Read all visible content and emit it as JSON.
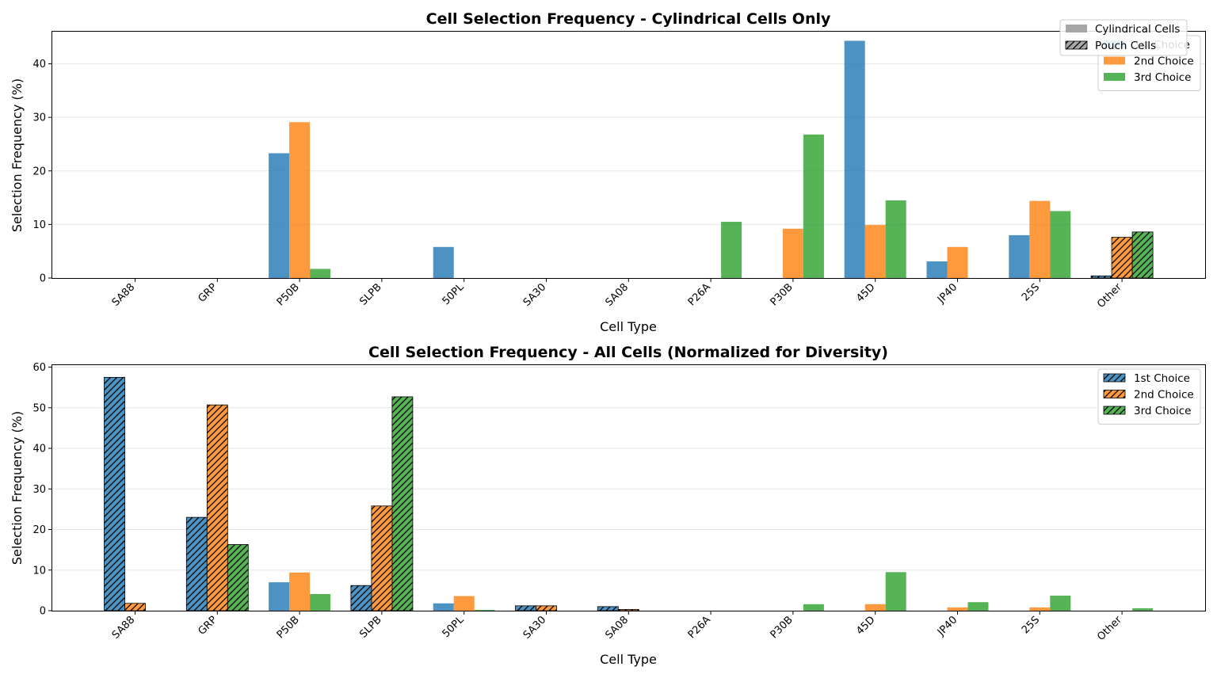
{
  "colors": {
    "first": "#1f77b4",
    "second": "#ff7f0e",
    "third": "#2ca02c",
    "bar_opacity": 0.8,
    "grid": "#e6e6e6",
    "legend_swatch_gray": "#a6a6a6"
  },
  "chart_data": [
    {
      "type": "bar",
      "title": "Cell Selection Frequency - Cylindrical Cells Only",
      "xlabel": "Cell Type",
      "ylabel": "Selection Frequency (%)",
      "ylim": [
        0,
        46
      ],
      "yticks": [
        0,
        10,
        20,
        30,
        40
      ],
      "grid": "y",
      "categories": [
        "SA88",
        "GRP",
        "P50B",
        "SLPB",
        "50PL",
        "SA30",
        "SA08",
        "P26A",
        "P30B",
        "45D",
        "JP40",
        "25S",
        "Other"
      ],
      "series": [
        {
          "name": "1st Choice",
          "color_key": "first",
          "values": [
            0,
            0,
            23.3,
            0,
            5.8,
            0,
            0,
            0,
            0,
            44.3,
            3.1,
            8.0,
            0.4
          ],
          "hatched": [
            false,
            false,
            false,
            false,
            false,
            false,
            false,
            false,
            false,
            false,
            false,
            false,
            true
          ]
        },
        {
          "name": "2nd Choice",
          "color_key": "second",
          "values": [
            0,
            0,
            29.1,
            0,
            0,
            0,
            0,
            0,
            9.2,
            9.9,
            5.8,
            14.4,
            7.6
          ],
          "hatched": [
            false,
            false,
            false,
            false,
            false,
            false,
            false,
            false,
            false,
            false,
            false,
            false,
            true
          ]
        },
        {
          "name": "3rd Choice",
          "color_key": "third",
          "values": [
            0,
            0,
            1.7,
            0,
            0,
            0,
            0,
            10.5,
            26.8,
            14.5,
            0,
            12.5,
            8.6
          ],
          "hatched": [
            false,
            false,
            false,
            false,
            false,
            false,
            false,
            false,
            false,
            false,
            false,
            false,
            true
          ]
        }
      ],
      "legend": {
        "placement": "top-right",
        "entries": [
          {
            "label": "1st Choice",
            "color_key": "first"
          },
          {
            "label": "2nd Choice",
            "color_key": "second"
          },
          {
            "label": "3rd Choice",
            "color_key": "third"
          }
        ]
      },
      "style_legend": {
        "placement": "top-right",
        "entries": [
          {
            "label": "Cylindrical Cells",
            "hatched": false
          },
          {
            "label": "Pouch Cells",
            "hatched": true
          }
        ]
      }
    },
    {
      "type": "bar",
      "title": "Cell Selection Frequency - All Cells (Normalized for Diversity)",
      "xlabel": "Cell Type",
      "ylabel": "Selection Frequency (%)",
      "ylim": [
        0,
        60.5
      ],
      "yticks": [
        0,
        10,
        20,
        30,
        40,
        50,
        60
      ],
      "grid": "y",
      "categories": [
        "SA88",
        "GRP",
        "P50B",
        "SLPB",
        "50PL",
        "SA30",
        "SA08",
        "P26A",
        "P30B",
        "45D",
        "JP40",
        "25S",
        "Other"
      ],
      "series": [
        {
          "name": "1st Choice",
          "color_key": "first",
          "values": [
            57.5,
            23.0,
            7.0,
            6.2,
            1.8,
            1.2,
            1.0,
            0,
            0,
            0,
            0,
            0,
            0
          ],
          "hatched": [
            true,
            true,
            false,
            true,
            false,
            true,
            true,
            false,
            false,
            false,
            false,
            false,
            false
          ]
        },
        {
          "name": "2nd Choice",
          "color_key": "second",
          "values": [
            1.8,
            50.7,
            9.4,
            25.8,
            3.6,
            1.2,
            0.3,
            0,
            0,
            1.6,
            0.8,
            0.8,
            0
          ],
          "hatched": [
            true,
            true,
            false,
            true,
            false,
            true,
            true,
            false,
            false,
            false,
            false,
            false,
            false
          ]
        },
        {
          "name": "3rd Choice",
          "color_key": "third",
          "values": [
            0,
            16.3,
            4.1,
            52.7,
            0.2,
            0,
            0,
            0,
            1.6,
            9.5,
            2.1,
            3.7,
            0.6
          ],
          "hatched": [
            true,
            true,
            false,
            true,
            false,
            true,
            true,
            false,
            false,
            false,
            false,
            false,
            false
          ]
        }
      ],
      "legend": {
        "placement": "top-right",
        "entries": [
          {
            "label": "1st Choice",
            "color_key": "first",
            "hatched": true
          },
          {
            "label": "2nd Choice",
            "color_key": "second",
            "hatched": true
          },
          {
            "label": "3rd Choice",
            "color_key": "third",
            "hatched": true
          }
        ]
      }
    }
  ]
}
